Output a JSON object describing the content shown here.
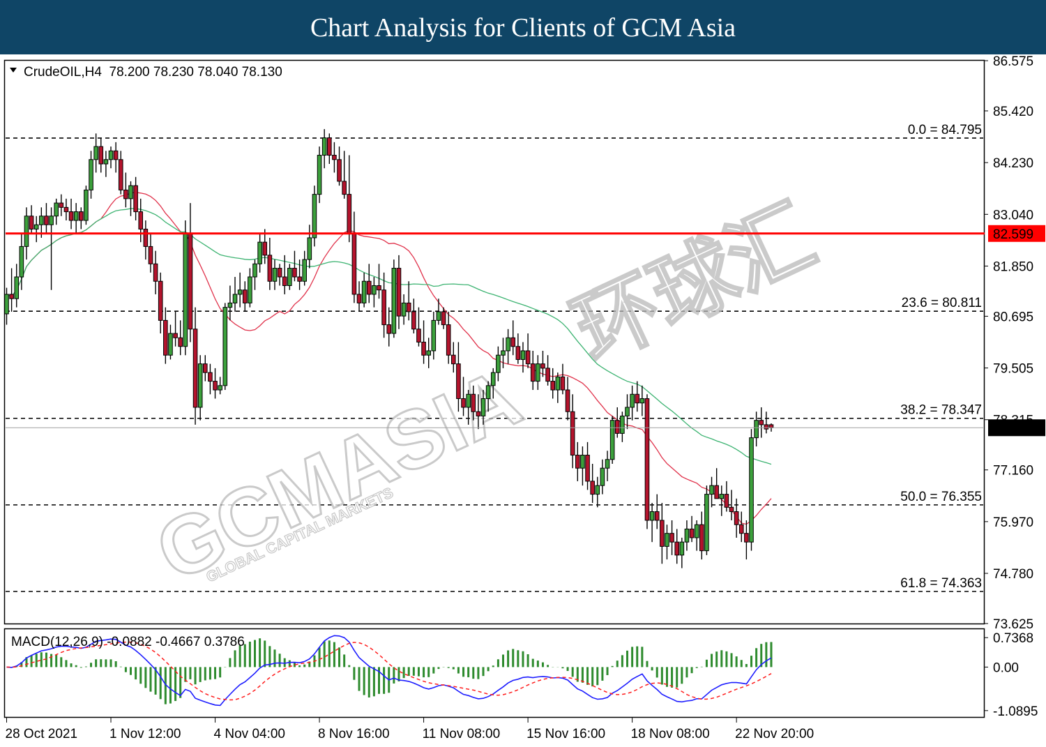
{
  "banner": {
    "title": "Chart Analysis for Clients of GCM Asia",
    "color": "#0f4566"
  },
  "watermark": {
    "brand": "GCMASIA",
    "tagline": "GLOBAL CAPITAL MARKETS",
    "chinese": "环球汇"
  },
  "chart_data": [
    {
      "type": "candlestick",
      "symbol_line": "CrudeOIL,H4  78.200 78.230 78.040 78.130",
      "ylim": [
        73.625,
        86.575
      ],
      "y_ticks": [
        "86.575",
        "85.420",
        "84.230",
        "83.040",
        "81.850",
        "80.695",
        "79.505",
        "78.315",
        "77.160",
        "75.970",
        "74.780",
        "73.625"
      ],
      "x_labels": [
        "28 Oct 2021",
        "1 Nov 12:00",
        "4 Nov 04:00",
        "8 Nov 16:00",
        "11 Nov 08:00",
        "15 Nov 16:00",
        "18 Nov 08:00",
        "22 Nov 20:00"
      ],
      "x_label_bars": [
        0,
        21,
        42,
        63,
        84,
        105,
        126,
        147
      ],
      "current_price": "78.130",
      "resistance": {
        "value": 82.599,
        "label": "82.599",
        "color": "#ff0000"
      },
      "fib_levels": [
        {
          "label": "0.0 = 84.795",
          "value": 84.795
        },
        {
          "label": "23.6 = 80.811",
          "value": 80.811
        },
        {
          "label": "38.2 = 78.347",
          "value": 78.347
        },
        {
          "label": "50.0 = 76.355",
          "value": 76.355
        },
        {
          "label": "61.8 = 74.363",
          "value": 74.363
        }
      ],
      "colors": {
        "bull": "#3ca03c",
        "bear": "#b4142d",
        "ma_fast": "#e0314a",
        "ma_slow": "#3cb371"
      },
      "ohlc": [
        [
          80.75,
          81.35,
          80.5,
          81.2
        ],
        [
          81.2,
          81.8,
          80.8,
          81.1
        ],
        [
          81.1,
          81.9,
          80.9,
          81.6
        ],
        [
          81.6,
          82.6,
          81.3,
          82.3
        ],
        [
          82.3,
          83.2,
          82.0,
          83.0
        ],
        [
          83.0,
          83.25,
          82.6,
          82.7
        ],
        [
          82.7,
          83.0,
          82.4,
          82.8
        ],
        [
          82.8,
          83.2,
          82.5,
          83.0
        ],
        [
          83.0,
          83.3,
          82.6,
          82.8
        ],
        [
          82.8,
          83.2,
          81.3,
          83.0
        ],
        [
          83.0,
          83.4,
          82.8,
          83.3
        ],
        [
          83.3,
          83.5,
          83.0,
          83.2
        ],
        [
          83.2,
          83.4,
          82.9,
          83.1
        ],
        [
          83.1,
          83.4,
          82.7,
          82.9
        ],
        [
          82.9,
          83.3,
          82.6,
          83.1
        ],
        [
          83.1,
          83.2,
          82.7,
          82.9
        ],
        [
          82.9,
          83.7,
          82.8,
          83.6
        ],
        [
          83.6,
          84.5,
          83.4,
          84.3
        ],
        [
          84.3,
          84.9,
          84.0,
          84.6
        ],
        [
          84.6,
          84.8,
          84.0,
          84.2
        ],
        [
          84.2,
          84.5,
          83.9,
          84.3
        ],
        [
          84.3,
          84.6,
          84.1,
          84.5
        ],
        [
          84.5,
          84.7,
          84.0,
          84.3
        ],
        [
          84.3,
          84.5,
          83.5,
          83.6
        ],
        [
          83.6,
          84.0,
          83.2,
          83.4
        ],
        [
          83.4,
          83.8,
          83.0,
          83.7
        ],
        [
          83.7,
          83.9,
          82.9,
          83.1
        ],
        [
          83.1,
          83.4,
          82.4,
          82.7
        ],
        [
          82.7,
          82.9,
          82.0,
          82.3
        ],
        [
          82.3,
          82.6,
          81.7,
          81.9
        ],
        [
          81.9,
          82.2,
          81.2,
          81.5
        ],
        [
          81.5,
          81.7,
          80.3,
          80.6
        ],
        [
          80.6,
          80.9,
          79.6,
          79.8
        ],
        [
          79.8,
          80.5,
          79.7,
          80.3
        ],
        [
          80.3,
          80.8,
          80.0,
          80.2
        ],
        [
          80.2,
          80.6,
          79.8,
          80.0
        ],
        [
          80.0,
          82.9,
          79.8,
          82.6
        ],
        [
          82.6,
          83.3,
          80.1,
          80.4
        ],
        [
          80.4,
          80.9,
          78.2,
          78.6
        ],
        [
          78.6,
          79.8,
          78.3,
          79.6
        ],
        [
          79.6,
          79.8,
          79.2,
          79.4
        ],
        [
          79.4,
          79.6,
          78.9,
          79.2
        ],
        [
          79.2,
          79.5,
          78.8,
          79.0
        ],
        [
          79.0,
          79.3,
          78.9,
          79.1
        ],
        [
          79.1,
          81.0,
          79.0,
          80.9
        ],
        [
          80.9,
          81.4,
          80.6,
          81.0
        ],
        [
          81.0,
          81.6,
          80.8,
          81.2
        ],
        [
          81.2,
          81.7,
          80.9,
          81.3
        ],
        [
          81.3,
          81.5,
          80.8,
          81.0
        ],
        [
          81.0,
          81.8,
          80.9,
          81.6
        ],
        [
          81.6,
          82.0,
          81.3,
          81.9
        ],
        [
          81.9,
          82.6,
          81.7,
          82.4
        ],
        [
          82.4,
          82.7,
          81.9,
          82.1
        ],
        [
          82.1,
          82.5,
          81.3,
          81.5
        ],
        [
          81.5,
          82.0,
          81.3,
          81.8
        ],
        [
          81.8,
          81.9,
          81.4,
          81.6
        ],
        [
          81.6,
          82.1,
          81.2,
          81.4
        ],
        [
          81.4,
          81.9,
          81.3,
          81.8
        ],
        [
          81.8,
          82.2,
          81.5,
          81.6
        ],
        [
          81.6,
          82.0,
          81.3,
          81.5
        ],
        [
          81.5,
          82.2,
          81.4,
          82.0
        ],
        [
          82.0,
          82.8,
          81.8,
          82.5
        ],
        [
          82.5,
          83.7,
          82.3,
          83.5
        ],
        [
          83.5,
          84.6,
          83.3,
          84.4
        ],
        [
          84.4,
          85.0,
          84.1,
          84.8
        ],
        [
          84.8,
          84.9,
          84.2,
          84.4
        ],
        [
          84.4,
          84.7,
          84.0,
          84.3
        ],
        [
          84.3,
          84.6,
          83.7,
          83.8
        ],
        [
          83.8,
          84.5,
          83.4,
          83.5
        ],
        [
          83.5,
          84.4,
          82.4,
          82.6
        ],
        [
          82.6,
          83.1,
          81.0,
          81.2
        ],
        [
          81.2,
          81.5,
          80.8,
          81.0
        ],
        [
          81.0,
          81.7,
          80.9,
          81.5
        ],
        [
          81.5,
          81.9,
          81.0,
          81.2
        ],
        [
          81.2,
          81.6,
          80.9,
          81.4
        ],
        [
          81.4,
          81.9,
          81.1,
          81.3
        ],
        [
          81.3,
          81.7,
          80.2,
          80.5
        ],
        [
          80.5,
          80.9,
          80.0,
          80.3
        ],
        [
          80.3,
          82.0,
          80.2,
          81.8
        ],
        [
          81.8,
          82.1,
          80.4,
          80.7
        ],
        [
          80.7,
          81.2,
          80.5,
          81.0
        ],
        [
          81.0,
          81.5,
          80.6,
          80.8
        ],
        [
          80.8,
          81.1,
          80.3,
          80.4
        ],
        [
          80.4,
          80.9,
          80.0,
          80.1
        ],
        [
          80.1,
          80.6,
          79.6,
          79.8
        ],
        [
          79.8,
          80.2,
          79.5,
          79.9
        ],
        [
          79.9,
          80.8,
          79.7,
          80.6
        ],
        [
          80.6,
          81.1,
          80.5,
          80.8
        ],
        [
          80.8,
          80.9,
          80.4,
          80.5
        ],
        [
          80.5,
          80.8,
          79.6,
          79.8
        ],
        [
          79.8,
          80.1,
          79.4,
          79.6
        ],
        [
          79.6,
          80.1,
          78.5,
          78.8
        ],
        [
          78.8,
          79.3,
          78.4,
          78.6
        ],
        [
          78.6,
          79.0,
          78.2,
          78.9
        ],
        [
          78.9,
          79.1,
          78.3,
          78.5
        ],
        [
          78.5,
          78.9,
          78.1,
          78.4
        ],
        [
          78.4,
          79.0,
          78.2,
          78.8
        ],
        [
          78.8,
          79.2,
          78.5,
          79.1
        ],
        [
          79.1,
          79.5,
          78.8,
          79.4
        ],
        [
          79.4,
          80.0,
          79.2,
          79.8
        ],
        [
          79.8,
          80.2,
          79.5,
          79.9
        ],
        [
          79.9,
          80.4,
          79.6,
          80.2
        ],
        [
          80.2,
          80.6,
          79.8,
          80.0
        ],
        [
          80.0,
          80.3,
          79.6,
          79.7
        ],
        [
          79.7,
          80.1,
          79.4,
          79.9
        ],
        [
          79.9,
          80.3,
          79.5,
          79.6
        ],
        [
          79.6,
          79.9,
          79.0,
          79.2
        ],
        [
          79.2,
          79.8,
          79.0,
          79.6
        ],
        [
          79.6,
          79.9,
          79.3,
          79.5
        ],
        [
          79.5,
          79.8,
          79.1,
          79.2
        ],
        [
          79.2,
          79.5,
          78.8,
          79.0
        ],
        [
          79.0,
          79.4,
          78.7,
          79.3
        ],
        [
          79.3,
          79.6,
          78.9,
          79.0
        ],
        [
          79.0,
          79.3,
          78.3,
          78.5
        ],
        [
          78.5,
          78.9,
          77.2,
          77.5
        ],
        [
          77.5,
          77.8,
          76.9,
          77.2
        ],
        [
          77.2,
          77.7,
          76.8,
          77.5
        ],
        [
          77.5,
          77.8,
          76.7,
          76.9
        ],
        [
          76.9,
          77.3,
          76.4,
          76.6
        ],
        [
          76.6,
          77.0,
          76.3,
          76.8
        ],
        [
          76.8,
          77.4,
          76.6,
          77.2
        ],
        [
          77.2,
          77.6,
          76.9,
          77.4
        ],
        [
          77.4,
          78.4,
          77.3,
          78.3
        ],
        [
          78.3,
          78.6,
          77.9,
          78.0
        ],
        [
          78.0,
          78.5,
          77.8,
          78.4
        ],
        [
          78.4,
          78.9,
          78.1,
          78.6
        ],
        [
          78.6,
          79.1,
          78.3,
          78.9
        ],
        [
          78.9,
          79.2,
          78.5,
          78.7
        ],
        [
          78.7,
          79.1,
          78.4,
          78.8
        ],
        [
          78.8,
          78.9,
          75.8,
          76.0
        ],
        [
          76.0,
          76.4,
          75.5,
          76.2
        ],
        [
          76.2,
          76.6,
          75.8,
          76.0
        ],
        [
          76.0,
          76.4,
          75.0,
          75.4
        ],
        [
          75.4,
          75.9,
          75.1,
          75.7
        ],
        [
          75.7,
          76.0,
          75.2,
          75.5
        ],
        [
          75.5,
          75.8,
          75.0,
          75.2
        ],
        [
          75.2,
          75.6,
          74.9,
          75.5
        ],
        [
          75.5,
          76.0,
          75.3,
          75.8
        ],
        [
          75.8,
          76.1,
          75.5,
          75.6
        ],
        [
          75.6,
          76.0,
          75.3,
          75.9
        ],
        [
          75.9,
          76.2,
          75.1,
          75.3
        ],
        [
          75.3,
          76.8,
          75.2,
          76.6
        ],
        [
          76.6,
          77.0,
          76.3,
          76.8
        ],
        [
          76.8,
          77.2,
          76.5,
          76.5
        ],
        [
          76.5,
          76.8,
          76.1,
          76.6
        ],
        [
          76.6,
          76.9,
          76.2,
          76.3
        ],
        [
          76.3,
          76.7,
          76.0,
          76.2
        ],
        [
          76.2,
          76.5,
          75.6,
          75.9
        ],
        [
          75.9,
          76.2,
          75.5,
          75.7
        ],
        [
          75.7,
          76.0,
          75.1,
          75.5
        ],
        [
          75.5,
          78.1,
          75.3,
          77.9
        ],
        [
          77.9,
          78.5,
          77.7,
          78.3
        ],
        [
          78.3,
          78.6,
          77.9,
          78.2
        ],
        [
          78.2,
          78.5,
          78.0,
          78.1
        ],
        [
          78.2,
          78.23,
          78.04,
          78.13
        ]
      ],
      "ma_fast_label": "",
      "ma_slow_label": ""
    },
    {
      "type": "macd",
      "label": "MACD(12,26,9) -0.0882 -0.4667 0.3786",
      "ylim": [
        -1.25,
        0.95
      ],
      "y_ticks": [
        "0.7368",
        "0.00",
        "-1.0895"
      ],
      "y_tick_values": [
        0.7368,
        0.0,
        -1.0895
      ],
      "colors": {
        "macd": "#1c1cff",
        "signal": "#ff1c1c",
        "hist": "#2e8b2e"
      },
      "hist": [
        0.3786
      ]
    }
  ]
}
